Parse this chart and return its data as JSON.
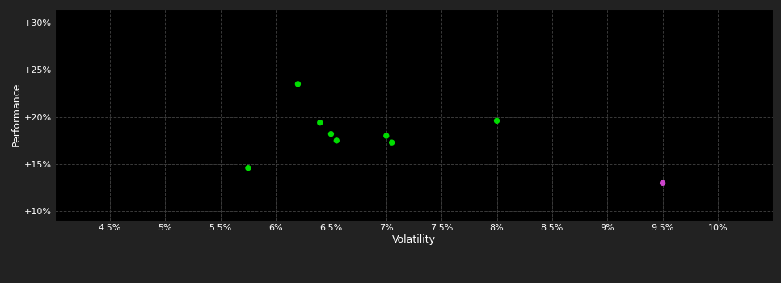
{
  "background_color": "#222222",
  "plot_bg_color": "#000000",
  "grid_color": "#3a3a3a",
  "grid_style": "--",
  "xlabel": "Volatility",
  "ylabel": "Performance",
  "xlim": [
    0.04,
    0.105
  ],
  "ylim": [
    0.09,
    0.315
  ],
  "xticks": [
    0.045,
    0.05,
    0.055,
    0.06,
    0.065,
    0.07,
    0.075,
    0.08,
    0.085,
    0.09,
    0.095,
    0.1
  ],
  "yticks": [
    0.1,
    0.15,
    0.2,
    0.25,
    0.3
  ],
  "xtick_labels": [
    "4.5%",
    "5%",
    "5.5%",
    "6%",
    "6.5%",
    "7%",
    "7.5%",
    "8%",
    "8.5%",
    "9%",
    "9.5%",
    "10%"
  ],
  "ytick_labels": [
    "+10%",
    "+15%",
    "+20%",
    "+25%",
    "+30%"
  ],
  "green_points": [
    [
      0.0575,
      0.146
    ],
    [
      0.062,
      0.235
    ],
    [
      0.064,
      0.194
    ],
    [
      0.065,
      0.182
    ],
    [
      0.0655,
      0.175
    ],
    [
      0.07,
      0.18
    ],
    [
      0.0705,
      0.173
    ],
    [
      0.08,
      0.196
    ]
  ],
  "magenta_points": [
    [
      0.095,
      0.13
    ]
  ],
  "green_color": "#00dd00",
  "magenta_color": "#cc44cc",
  "marker_size": 28,
  "tick_color": "#ffffff",
  "label_color": "#ffffff",
  "tick_fontsize": 8,
  "label_fontsize": 9
}
